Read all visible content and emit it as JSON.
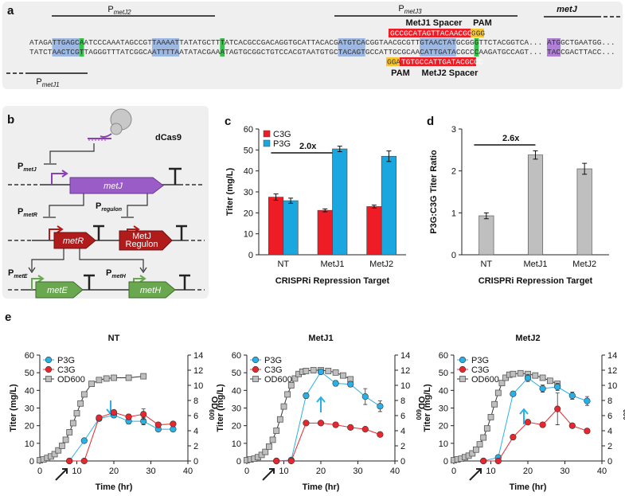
{
  "panel_labels": [
    "a",
    "b",
    "c",
    "d",
    "e"
  ],
  "panel_a": {
    "promoter_j2": {
      "text": "P",
      "sub": "metJ2"
    },
    "promoter_j3": {
      "text": "P",
      "sub": "metJ3"
    },
    "promoter_j1": {
      "text": "P",
      "sub": "metJ1"
    },
    "gene": "metJ",
    "seq_top": [
      "ATAGATTGAGCAATCCCAAATAGCCGTTAAAATTATATGCTTTATCACGCCGACAGGTGCATTACACGATGTCACGGTAACGCGTTGTAACTATGCGGGTTCTACGGTCA...",
      "ATGGCTGAATGG..."
    ],
    "seq_bottom": [
      "TATCTAACTCGTTAGGGTTTATCGGCAATTTTAATATACGAAATAGTGCGGCTGTCCACGTAATGTGCTACAGTGCCATTGCGCAACATTGATACGCCCAAGATGCCAGT...",
      "TACCGACTTACC..."
    ],
    "spacer1": {
      "label": "MetJ1 Spacer",
      "seq": "GCCGCATAGTTACAACGCG",
      "pam": "GGG",
      "pam_label": "PAM"
    },
    "spacer2": {
      "label": "MetJ2 Spacer",
      "seq": "TGTGCCATTGATACGCCC",
      "pam": "GGA",
      "pam_label": "PAM"
    }
  },
  "panel_b": {
    "dcas9": "dCas9",
    "p_metj": {
      "text": "P",
      "sub": "metJ"
    },
    "metj": "metJ",
    "p_metr": {
      "text": "P",
      "sub": "metR"
    },
    "p_regulon": {
      "text": "P",
      "sub": "regulon"
    },
    "metr": "metR",
    "regulon": [
      "MetJ",
      "Regulon"
    ],
    "p_mete": {
      "text": "P",
      "sub": "metE"
    },
    "p_meth": {
      "text": "P",
      "sub": "metH"
    },
    "mete": "metE",
    "meth": "metH"
  },
  "chart_data": [
    {
      "type": "bar",
      "categories": [
        "NT",
        "MetJ1",
        "MetJ2"
      ],
      "series": [
        {
          "name": "C3G",
          "color": "#ee1c25",
          "values": [
            27.5,
            21.2,
            23
          ],
          "errors": [
            1.5,
            0.7,
            0.7
          ]
        },
        {
          "name": "P3G",
          "color": "#1aa7e0",
          "values": [
            25.8,
            50.5,
            47
          ],
          "errors": [
            1.2,
            1.3,
            2.5
          ]
        }
      ],
      "ylim": [
        0,
        60
      ],
      "yticks": [
        0,
        10,
        20,
        30,
        40,
        50,
        60
      ],
      "ylabel": "Titer (mg/L)",
      "xlabel": "CRISPRi Repression Target",
      "annotation": "2.0x",
      "legend": "upper left"
    },
    {
      "type": "bar",
      "categories": [
        "NT",
        "MetJ1",
        "MetJ2"
      ],
      "values": [
        0.93,
        2.38,
        2.05
      ],
      "errors": [
        0.07,
        0.1,
        0.13
      ],
      "color": "#bfbfbf",
      "ylim": [
        0,
        3
      ],
      "yticks": [
        0,
        1,
        2,
        3
      ],
      "ylabel": "P3G:C3G Titer Ratio",
      "xlabel": "CRISPRi Repression Target",
      "annotation": "2.6x"
    },
    {
      "type": "line",
      "title": "NT",
      "xlim": [
        0,
        40
      ],
      "xticks": [
        0,
        10,
        20,
        30,
        40
      ],
      "ylim": [
        0,
        60
      ],
      "yticks": [
        0,
        10,
        20,
        30,
        40,
        50,
        60
      ],
      "y2lim": [
        0,
        14
      ],
      "y2ticks": [
        0,
        2,
        4,
        6,
        8,
        10,
        12,
        14
      ],
      "xlabel": "Time (hr)",
      "ylabel": "Titer (mg/L)",
      "y2label": {
        "text": "OD",
        "sub": "600"
      },
      "legend": "upper left",
      "series": [
        {
          "name": "P3G",
          "color": "#29b0e6",
          "marker": "circle",
          "x": [
            8,
            12,
            16,
            20,
            24,
            28,
            32,
            36
          ],
          "values": [
            0,
            11.5,
            24,
            26,
            22.5,
            22.5,
            18,
            18
          ],
          "errors": [
            0,
            0.5,
            1,
            1.5,
            1.5,
            2,
            1,
            1
          ]
        },
        {
          "name": "C3G",
          "color": "#e8262d",
          "marker": "circle",
          "x": [
            8,
            12,
            16,
            20,
            24,
            28,
            32,
            36
          ],
          "values": [
            0,
            0,
            24.5,
            27.5,
            25,
            26.5,
            20.5,
            21
          ],
          "errors": [
            0,
            0,
            1,
            1.5,
            1.5,
            3,
            1,
            1
          ]
        },
        {
          "name": "OD600",
          "color": "#bfbfbf",
          "marker": "square",
          "axis": "y2",
          "x": [
            0,
            1,
            2,
            3,
            4,
            5,
            6,
            7,
            8,
            9,
            10,
            11,
            12,
            14,
            16,
            18,
            20,
            24,
            28
          ],
          "values": [
            0.1,
            0.2,
            0.4,
            0.6,
            0.9,
            1.4,
            2.0,
            2.8,
            3.8,
            5.0,
            6.3,
            7.6,
            8.8,
            10.2,
            10.7,
            10.9,
            11.0,
            11.0,
            11.2
          ]
        }
      ]
    },
    {
      "type": "line",
      "title": "MetJ1",
      "xlim": [
        0,
        40
      ],
      "xticks": [
        0,
        10,
        20,
        30,
        40
      ],
      "ylim": [
        0,
        60
      ],
      "yticks": [
        0,
        10,
        20,
        30,
        40,
        50,
        60
      ],
      "y2lim": [
        0,
        14
      ],
      "y2ticks": [
        0,
        2,
        4,
        6,
        8,
        10,
        12,
        14
      ],
      "xlabel": "Time (hr)",
      "ylabel": "Titer (mg/L)",
      "y2label": {
        "text": "OD",
        "sub": "600"
      },
      "legend": "upper left",
      "series": [
        {
          "name": "P3G",
          "color": "#29b0e6",
          "marker": "circle",
          "x": [
            8,
            12,
            16,
            20,
            24,
            28,
            32,
            36
          ],
          "values": [
            0,
            0.5,
            37,
            50.5,
            44,
            43.5,
            36.5,
            31
          ],
          "errors": [
            0,
            0.5,
            1.5,
            1,
            1.5,
            1.5,
            4.5,
            3
          ]
        },
        {
          "name": "C3G",
          "color": "#e8262d",
          "marker": "circle",
          "x": [
            8,
            12,
            16,
            20,
            24,
            28,
            32,
            36
          ],
          "values": [
            0,
            0,
            21.5,
            21.5,
            20.5,
            19,
            18,
            15
          ],
          "errors": [
            0,
            0,
            0.5,
            0.5,
            0.5,
            0.5,
            0.5,
            0.5
          ]
        },
        {
          "name": "OD600",
          "color": "#bfbfbf",
          "marker": "square",
          "axis": "y2",
          "x": [
            0,
            1,
            2,
            3,
            4,
            5,
            6,
            7,
            8,
            9,
            10,
            11,
            12,
            13,
            14,
            15,
            16,
            18,
            20,
            22,
            24,
            26,
            28
          ],
          "values": [
            0.1,
            0.2,
            0.3,
            0.5,
            0.8,
            1.2,
            1.9,
            2.8,
            4.0,
            5.5,
            7.2,
            8.8,
            10.0,
            10.9,
            11.5,
            11.8,
            11.9,
            12.0,
            12.0,
            11.9,
            11.7,
            11.3,
            10.8
          ]
        }
      ]
    },
    {
      "type": "line",
      "title": "MetJ2",
      "xlim": [
        0,
        40
      ],
      "xticks": [
        0,
        10,
        20,
        30,
        40
      ],
      "ylim": [
        0,
        60
      ],
      "yticks": [
        0,
        10,
        20,
        30,
        40,
        50,
        60
      ],
      "y2lim": [
        0,
        14
      ],
      "y2ticks": [
        0,
        2,
        4,
        6,
        8,
        10,
        12,
        14
      ],
      "xlabel": "Time (hr)",
      "ylabel": "Titer (mg/L)",
      "y2label": {
        "text": "OD",
        "sub": "600"
      },
      "legend": "upper left",
      "series": [
        {
          "name": "P3G",
          "color": "#29b0e6",
          "marker": "circle",
          "x": [
            8,
            12,
            16,
            20,
            24,
            28,
            32,
            36
          ],
          "values": [
            0,
            2,
            38,
            47,
            41,
            42,
            37,
            34
          ],
          "errors": [
            0,
            0.5,
            1,
            2,
            2,
            2,
            2,
            2.5
          ]
        },
        {
          "name": "C3G",
          "color": "#e8262d",
          "marker": "circle",
          "x": [
            8,
            12,
            16,
            20,
            24,
            28,
            32,
            36
          ],
          "values": [
            0,
            0,
            13.5,
            22,
            20.5,
            29.5,
            20,
            17
          ],
          "errors": [
            0,
            0,
            1,
            1,
            1,
            9,
            1,
            1
          ]
        },
        {
          "name": "OD600",
          "color": "#bfbfbf",
          "marker": "square",
          "axis": "y2",
          "x": [
            0,
            1,
            2,
            3,
            4,
            5,
            6,
            7,
            8,
            9,
            10,
            11,
            12,
            13,
            14,
            15,
            16,
            18,
            20,
            22,
            24,
            26,
            28
          ],
          "values": [
            0.1,
            0.2,
            0.3,
            0.5,
            0.7,
            1.0,
            1.5,
            2.2,
            3.1,
            4.3,
            5.8,
            7.5,
            9.0,
            10.3,
            11.0,
            11.4,
            11.5,
            11.6,
            11.5,
            11.3,
            11.0,
            10.6,
            10.2
          ]
        }
      ]
    }
  ]
}
